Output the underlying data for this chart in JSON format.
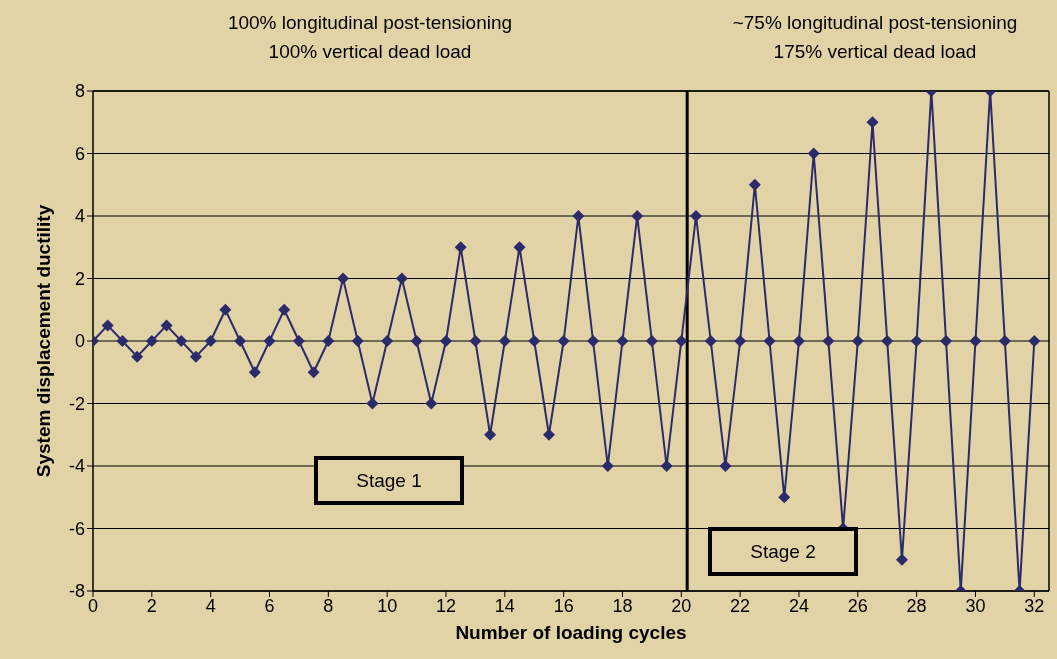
{
  "chart_data": {
    "type": "line",
    "xlabel": "Number of loading cycles",
    "ylabel": "System displacement ductility",
    "annotations": [
      "100% longitudinal post-tensioning\n100% vertical dead load",
      "~75% longitudinal post-tensioning\n175% vertical dead load",
      "Stage 1",
      "Stage 2"
    ],
    "x": [
      0,
      0.5,
      1,
      1.5,
      2,
      2.5,
      3,
      3.5,
      4,
      4.5,
      5,
      5.5,
      6,
      6.5,
      7,
      7.5,
      8,
      8.5,
      9,
      9.5,
      10,
      10.5,
      11,
      11.5,
      12,
      12.5,
      13,
      13.5,
      14,
      14.5,
      15,
      15.5,
      16,
      16.5,
      17,
      17.5,
      18,
      18.5,
      19,
      19.5,
      20,
      20.5,
      21,
      21.5,
      22,
      22.5,
      23,
      23.5,
      24,
      24.5,
      25,
      25.5,
      26,
      26.5,
      27,
      27.5,
      28,
      28.5,
      29,
      29.5,
      30,
      30.5,
      31,
      31.5,
      32
    ],
    "series": [
      {
        "color": "#2b2b6b",
        "values": [
          0,
          0.5,
          0,
          -0.5,
          0,
          0.5,
          0,
          -0.5,
          0,
          1,
          0,
          -1,
          0,
          1,
          0,
          -1,
          0,
          2,
          0,
          -2,
          0,
          2,
          0,
          -2,
          0,
          3,
          0,
          -3,
          0,
          3,
          0,
          -3,
          0,
          4,
          0,
          -4,
          0,
          4,
          0,
          -4,
          0,
          4,
          0,
          -4,
          0,
          5,
          0,
          -5,
          0,
          6,
          0,
          -6,
          0,
          7,
          0,
          -7,
          0,
          8,
          0,
          -8,
          0,
          8,
          0,
          -8,
          0
        ]
      }
    ],
    "xlim": [
      0,
      32.5
    ],
    "xticks": [
      0,
      2,
      4,
      6,
      8,
      10,
      12,
      14,
      16,
      18,
      20,
      22,
      24,
      26,
      28,
      30,
      32
    ],
    "ylim": [
      -8,
      8
    ],
    "yticks": [
      -8,
      -6,
      -4,
      -2,
      0,
      2,
      4,
      6,
      8
    ],
    "ref_lines": [
      {
        "axis": "x",
        "value": 20.2,
        "color": "#000000"
      }
    ],
    "grid": "y",
    "marker": "diamond",
    "line_style": "solid",
    "legend": false
  }
}
